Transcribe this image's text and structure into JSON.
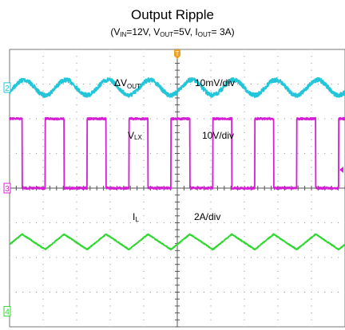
{
  "title": "Output Ripple",
  "subtitle": {
    "p1": "(V",
    "s1": "IN",
    "p2": "=12V, V",
    "s2": "OUT",
    "p3": "=5V, I",
    "s3": "OUT",
    "p4": "= 3A)"
  },
  "chart_data": {
    "type": "line",
    "title": "Output Ripple",
    "conditions": {
      "VIN": "12V",
      "VOUT": "5V",
      "IOUT": "3A"
    },
    "grid": true,
    "divisions": {
      "x": 10,
      "y": 8
    },
    "switching_cycles_on_screen": 8,
    "series": [
      {
        "name": "ΔVOUT",
        "name_main": "ΔV",
        "name_sub": "OUT",
        "scale": "10mV/div",
        "channel": "2",
        "color": "#22c6d8",
        "shape": "sine",
        "offset_div": 2.9,
        "amplitude_div": 0.22,
        "noise_div": 0.06
      },
      {
        "name": "VLX",
        "name_main": "V",
        "name_sub": "LX",
        "scale": "10V/div",
        "channel": "3",
        "color": "#d41fd4",
        "shape": "square",
        "offset_div": 0.0,
        "amplitude_div": 1.0,
        "duty": 0.45,
        "noise_div": 0.03
      },
      {
        "name": "IL",
        "name_main": "I",
        "name_sub": "L",
        "scale": "2A/div",
        "channel": "4",
        "color": "#2ed82e",
        "shape": "triangle",
        "offset_div": -1.55,
        "amplitude_div": 0.22,
        "duty": 0.45,
        "noise_div": 0.015
      }
    ],
    "markers": [
      {
        "label": "2",
        "color": "#22c6d8"
      },
      {
        "label": "3",
        "color": "#d41fd4"
      },
      {
        "label": "4",
        "color": "#2ed82e"
      },
      {
        "label": "T",
        "color": "#f0a020"
      }
    ]
  }
}
